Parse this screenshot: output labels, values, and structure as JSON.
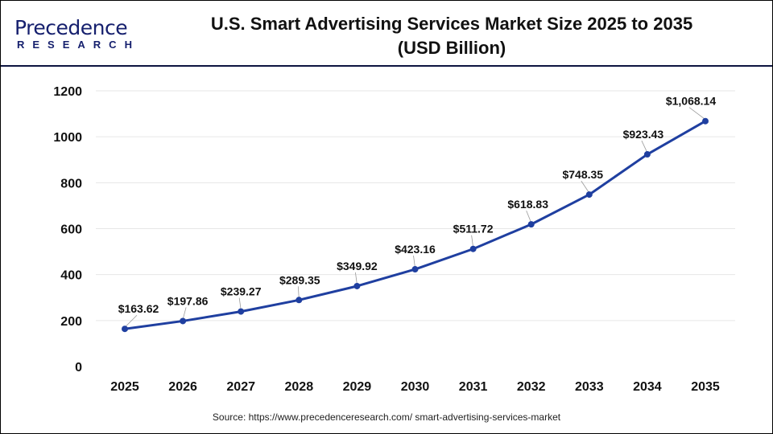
{
  "logo": {
    "main": "Precedence",
    "sub": "RESEARCH"
  },
  "title": {
    "line1": "U.S. Smart Advertising Services Market Size 2025 to 2035",
    "line2": "(USD Billion)"
  },
  "source": "Source: https://www.precedenceresearch.com/ smart-advertising-services-market",
  "chart_data": {
    "type": "line",
    "title": "U.S. Smart Advertising Services Market Size 2025 to 2035 (USD Billion)",
    "categories": [
      "2025",
      "2026",
      "2027",
      "2028",
      "2029",
      "2030",
      "2031",
      "2032",
      "2033",
      "2034",
      "2035"
    ],
    "values": [
      163.62,
      197.86,
      239.27,
      289.35,
      349.92,
      423.16,
      511.72,
      618.83,
      748.35,
      923.43,
      1068.14
    ],
    "data_labels": [
      "$163.62",
      "$197.86",
      "$239.27",
      "$289.35",
      "$349.92",
      "$423.16",
      "$511.72",
      "$618.83",
      "$748.35",
      "$923.43",
      "$1,068.14"
    ],
    "ylim": [
      0,
      1200
    ],
    "yticks": [
      0,
      200,
      400,
      600,
      800,
      1000,
      1200
    ],
    "grid": true,
    "line_color": "#1f3fa0",
    "xlabel": "",
    "ylabel": ""
  }
}
